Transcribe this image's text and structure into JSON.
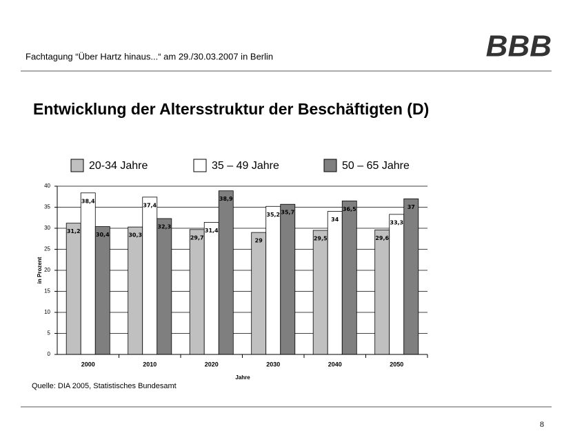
{
  "header": {
    "text": "Fachtagung “Über Hartz hinaus...“ am 29./30.03.2007 in Berlin",
    "logo": "BBB"
  },
  "chart_data": {
    "type": "bar",
    "title": "Entwicklung der Altersstruktur der Beschäftigten (D)",
    "categories": [
      "2000",
      "2010",
      "2020",
      "2030",
      "2040",
      "2050"
    ],
    "series": [
      {
        "name": "20-34 Jahre",
        "color": "#c0c0c0",
        "values": [
          31.2,
          30.3,
          29.7,
          29,
          29.5,
          29.6
        ],
        "value_labels": [
          "31,2",
          "30,3",
          "29,7",
          "29",
          "29,5",
          "29,6"
        ]
      },
      {
        "name": "35 – 49 Jahre",
        "color": "#ffffff",
        "values": [
          38.4,
          37.4,
          31.4,
          35.2,
          34,
          33.3
        ],
        "value_labels": [
          "38,4",
          "37,4",
          "31,4",
          "35,2",
          "34",
          "33,3"
        ]
      },
      {
        "name": "50 – 65 Jahre",
        "color": "#7f7f7f",
        "values": [
          30.4,
          32.3,
          38.9,
          35.7,
          36.5,
          37
        ],
        "value_labels": [
          "30,4",
          "32,3",
          "38,9",
          "35,7",
          "36,5",
          "37"
        ]
      }
    ],
    "ylabel": "in Prozent",
    "xlabel": "Jahre",
    "ylim": [
      0,
      40
    ],
    "yticks": [
      0,
      5,
      10,
      15,
      20,
      25,
      30,
      35,
      40
    ],
    "grid": true
  },
  "source": "Quelle: DIA 2005, Statistisches Bundesamt",
  "page_number": "8"
}
